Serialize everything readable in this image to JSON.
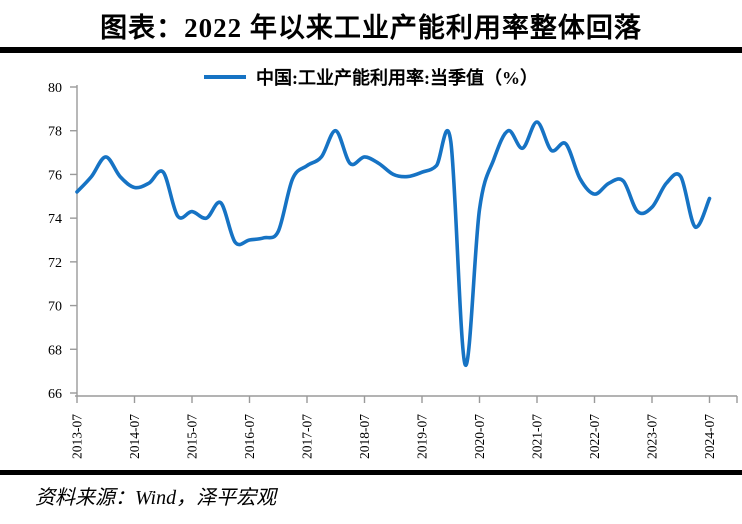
{
  "title": "图表：2022 年以来工业产能利用率整体回落",
  "legend": {
    "label": "中国:工业产能利用率:当季值（%）"
  },
  "source": "资料来源：Wind，泽平宏观",
  "colors": {
    "line": "#1673c4",
    "axis": "#9a9a9a",
    "rule": "#000000",
    "text": "#000000"
  },
  "chart_data": {
    "type": "line",
    "title": "图表：2022 年以来工业产能利用率整体回落",
    "grid": false,
    "legend_position": "top-center",
    "ylim": [
      66,
      80
    ],
    "y_ticks": [
      80,
      78,
      76,
      74,
      72,
      70,
      68,
      66
    ],
    "x_tick_labels": [
      "2013-07",
      "2014-07",
      "2015-07",
      "2016-07",
      "2017-07",
      "2018-07",
      "2019-07",
      "2020-07",
      "2021-07",
      "2022-07",
      "2023-07",
      "2024-07"
    ],
    "series": [
      {
        "name": "中国:工业产能利用率:当季值（%）",
        "x": [
          "2013Q2",
          "2013Q3",
          "2013Q4",
          "2014Q1",
          "2014Q2",
          "2014Q3",
          "2014Q4",
          "2015Q1",
          "2015Q2",
          "2015Q3",
          "2015Q4",
          "2016Q1",
          "2016Q2",
          "2016Q3",
          "2016Q4",
          "2017Q1",
          "2017Q2",
          "2017Q3",
          "2017Q4",
          "2018Q1",
          "2018Q2",
          "2018Q3",
          "2018Q4",
          "2019Q1",
          "2019Q2",
          "2019Q3",
          "2019Q4",
          "2020Q1",
          "2020Q2",
          "2020Q3",
          "2020Q4",
          "2021Q1",
          "2021Q2",
          "2021Q3",
          "2021Q4",
          "2022Q1",
          "2022Q2",
          "2022Q3",
          "2022Q4",
          "2023Q1",
          "2023Q2",
          "2023Q3",
          "2023Q4",
          "2024Q1",
          "2024Q2"
        ],
        "values": [
          75.2,
          75.9,
          76.8,
          75.9,
          75.4,
          75.6,
          76.1,
          74.1,
          74.3,
          74.0,
          74.7,
          72.9,
          73.0,
          73.1,
          73.4,
          75.8,
          76.4,
          76.8,
          78.0,
          76.5,
          76.8,
          76.5,
          76.0,
          75.9,
          76.1,
          76.4,
          77.5,
          67.3,
          74.4,
          76.7,
          78.0,
          77.2,
          78.4,
          77.1,
          77.4,
          75.8,
          75.1,
          75.6,
          75.7,
          74.3,
          74.5,
          75.6,
          75.9,
          73.6,
          74.9
        ]
      }
    ]
  }
}
